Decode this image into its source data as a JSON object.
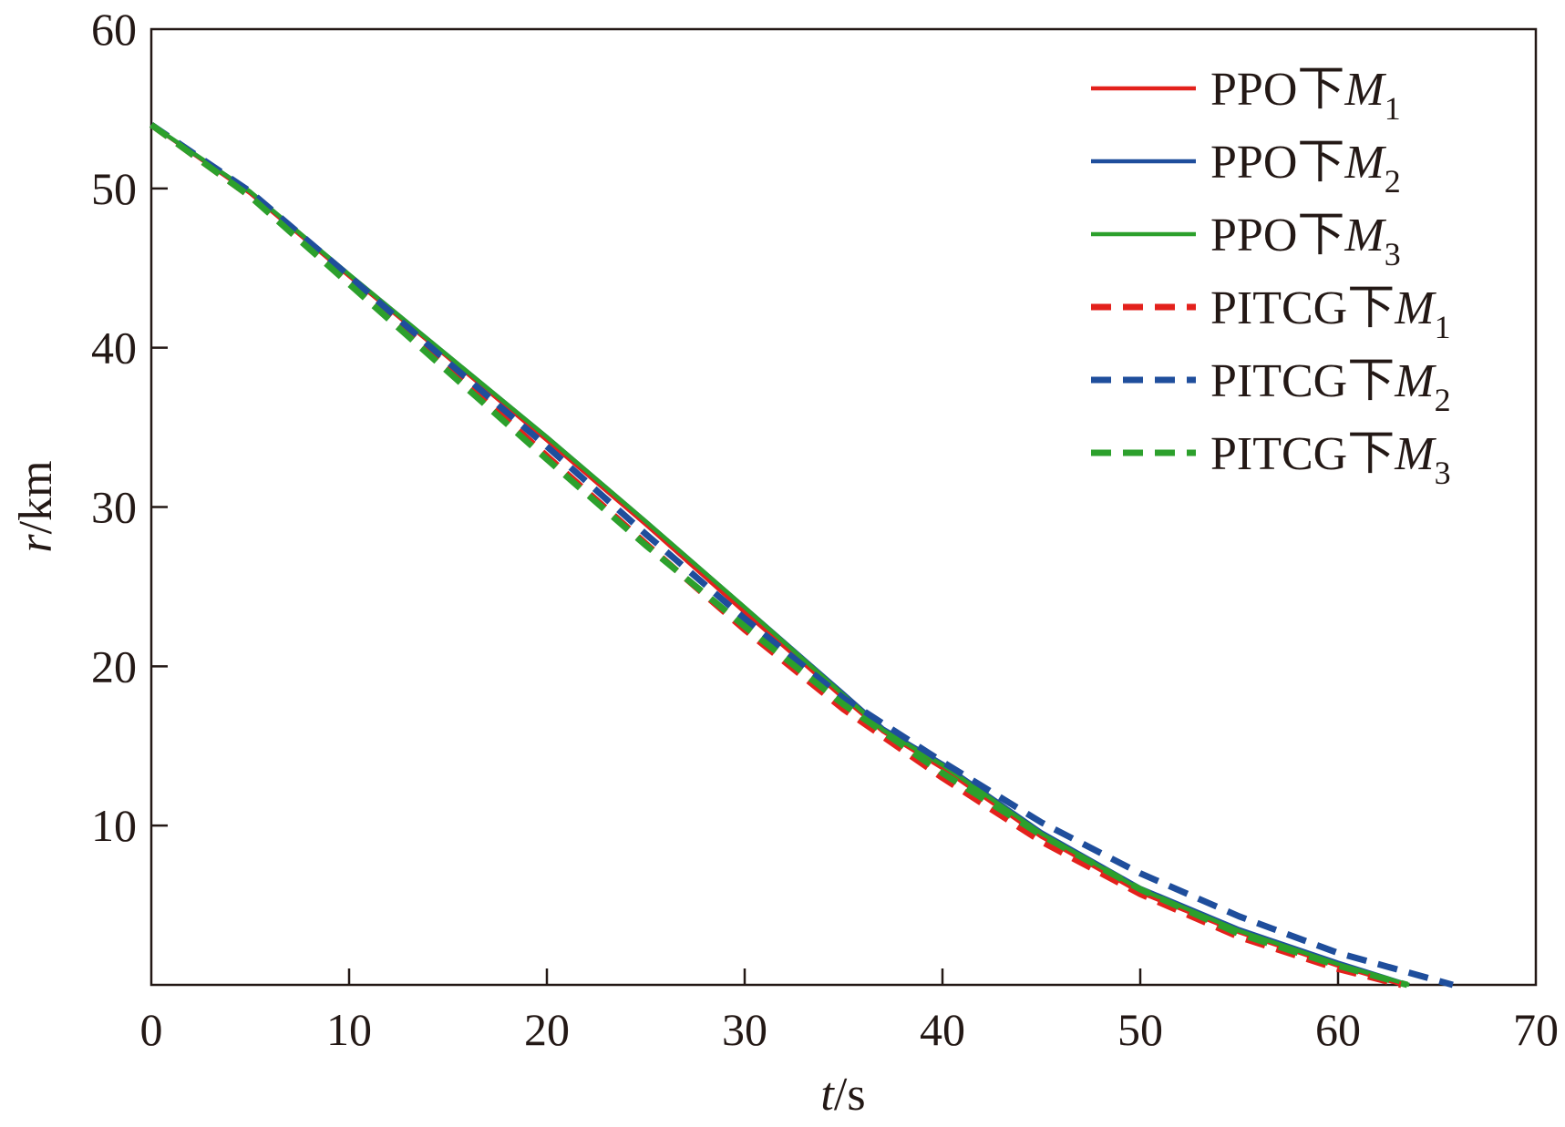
{
  "chart_data": {
    "type": "line",
    "title": "",
    "xlabel": {
      "var": "t",
      "unit": "/s"
    },
    "ylabel": {
      "var": "r",
      "unit": "/km"
    },
    "xlim": [
      0,
      70
    ],
    "ylim": [
      0,
      60
    ],
    "xticks": [
      0,
      10,
      20,
      30,
      40,
      50,
      60,
      70
    ],
    "yticks": [
      10,
      20,
      30,
      40,
      50,
      60
    ],
    "grid": false,
    "legend_position": "top-right",
    "series": [
      {
        "name": "PPO下M1",
        "label_text": "PPO下",
        "label_var": "M",
        "label_sub": "1",
        "color": "#e3211c",
        "dash": "solid",
        "x": [
          0,
          5,
          10,
          15,
          20,
          25,
          30,
          35,
          37,
          40,
          45,
          50,
          55,
          60,
          63.3
        ],
        "y": [
          54.0,
          49.7,
          44.5,
          39.4,
          34.2,
          28.9,
          23.4,
          18.0,
          15.9,
          13.6,
          9.3,
          5.8,
          3.3,
          1.2,
          0.0
        ]
      },
      {
        "name": "PPO下M2",
        "label_text": "PPO下",
        "label_var": "M",
        "label_sub": "2",
        "color": "#1f4e9c",
        "dash": "solid",
        "x": [
          0,
          5,
          10,
          15,
          20,
          25,
          30,
          35,
          37,
          40,
          45,
          50,
          55,
          60,
          63.6
        ],
        "y": [
          54.0,
          49.8,
          44.6,
          39.5,
          34.4,
          29.1,
          23.7,
          18.3,
          16.1,
          13.9,
          9.6,
          6.1,
          3.5,
          1.4,
          0.0
        ]
      },
      {
        "name": "PPO下M3",
        "label_text": "PPO下",
        "label_var": "M",
        "label_sub": "3",
        "color": "#2ca02c",
        "dash": "solid",
        "x": [
          0,
          5,
          10,
          15,
          20,
          25,
          30,
          35,
          37,
          40,
          45,
          50,
          55,
          60,
          63.6
        ],
        "y": [
          54.0,
          49.8,
          44.6,
          39.5,
          34.4,
          29.1,
          23.7,
          18.2,
          16.0,
          13.8,
          9.5,
          6.0,
          3.4,
          1.3,
          0.0
        ]
      },
      {
        "name": "PITCG下M1",
        "label_text": "PITCG下",
        "label_var": "M",
        "label_sub": "1",
        "color": "#e3211c",
        "dash": "dashed",
        "x": [
          0,
          5,
          10,
          15,
          20,
          25,
          30,
          35,
          40,
          45,
          50,
          55,
          60,
          63.2
        ],
        "y": [
          54.0,
          49.5,
          44.2,
          38.8,
          33.2,
          27.7,
          22.3,
          17.3,
          13.0,
          9.0,
          5.7,
          3.0,
          1.0,
          0.0
        ]
      },
      {
        "name": "PITCG下M2",
        "label_text": "PITCG下",
        "label_var": "M",
        "label_sub": "2",
        "color": "#1f4e9c",
        "dash": "dashed",
        "x": [
          0,
          5,
          10,
          15,
          20,
          25,
          30,
          35,
          40,
          45,
          50,
          55,
          60,
          65.8
        ],
        "y": [
          54.0,
          49.8,
          44.5,
          39.1,
          33.8,
          28.3,
          23.0,
          18.0,
          14.0,
          10.2,
          7.0,
          4.3,
          2.0,
          0.0
        ]
      },
      {
        "name": "PITCG下M3",
        "label_text": "PITCG下",
        "label_var": "M",
        "label_sub": "3",
        "color": "#2ca02c",
        "dash": "dashed",
        "x": [
          0,
          5,
          10,
          15,
          20,
          25,
          30,
          35,
          40,
          45,
          50,
          55,
          60,
          63.5
        ],
        "y": [
          54.0,
          49.5,
          44.0,
          38.5,
          33.0,
          27.6,
          22.5,
          17.6,
          13.3,
          9.4,
          6.0,
          3.2,
          1.2,
          0.0
        ]
      }
    ]
  }
}
